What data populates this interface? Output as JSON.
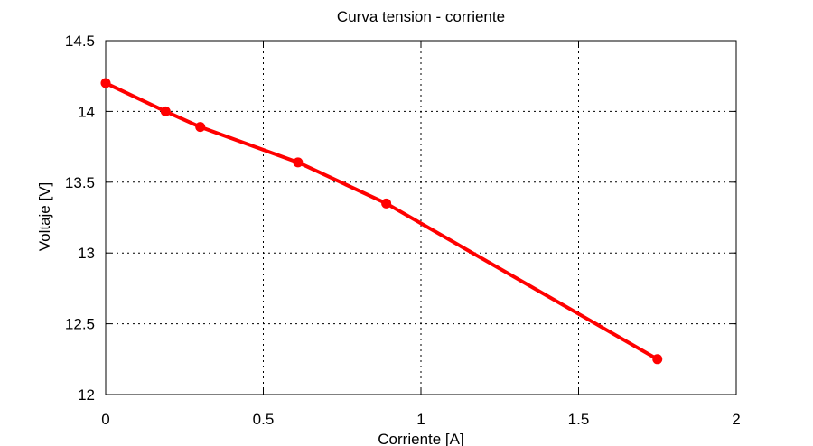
{
  "chart_data": {
    "type": "line",
    "title": "Curva tension - corriente",
    "xlabel": "Corriente [A]",
    "ylabel": "Voltaje [V]",
    "xlim": [
      0,
      2
    ],
    "ylim": [
      12,
      14.5
    ],
    "xticks": [
      {
        "value": 0,
        "label": "0"
      },
      {
        "value": 0.5,
        "label": "0.5"
      },
      {
        "value": 1,
        "label": "1"
      },
      {
        "value": 1.5,
        "label": "1.5"
      },
      {
        "value": 2,
        "label": "2"
      }
    ],
    "yticks": [
      {
        "value": 12,
        "label": "12"
      },
      {
        "value": 12.5,
        "label": "12.5"
      },
      {
        "value": 13,
        "label": "13"
      },
      {
        "value": 13.5,
        "label": "13.5"
      },
      {
        "value": 14,
        "label": "14"
      },
      {
        "value": 14.5,
        "label": "14.5"
      }
    ],
    "grid": true,
    "grid_style": "dotted",
    "series": [
      {
        "color": "#ff0000",
        "marker": "circle",
        "x": [
          0,
          0.19,
          0.3,
          0.61,
          0.89,
          1.75
        ],
        "y": [
          14.2,
          14.0,
          13.89,
          13.64,
          13.35,
          12.25
        ]
      }
    ]
  }
}
